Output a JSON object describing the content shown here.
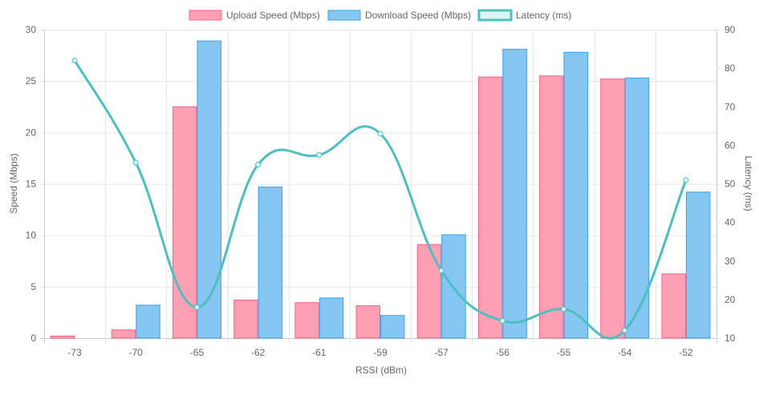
{
  "chart_data": {
    "type": "bar",
    "xlabel": "RSSI (dBm)",
    "ylabel_left": "Speed (Mbps)",
    "ylabel_right": "Latency (ms)",
    "categories": [
      "-73",
      "-70",
      "-65",
      "-62",
      "-61",
      "-59",
      "-57",
      "-56",
      "-55",
      "-54",
      "-52"
    ],
    "ylim_left": [
      0,
      30
    ],
    "ylim_right": [
      10,
      90
    ],
    "left_ticks": [
      "0",
      "5",
      "10",
      "15",
      "20",
      "25",
      "30"
    ],
    "right_ticks": [
      "10",
      "20",
      "30",
      "40",
      "50",
      "60",
      "70",
      "80",
      "90"
    ],
    "grid": true,
    "legend_position": "top",
    "series": [
      {
        "name": "Upload Speed (Mbps)",
        "type": "bar",
        "axis": "left",
        "fill": "#ff9fb4",
        "stroke": "#ff6384",
        "values": [
          0.2,
          0.8,
          22.5,
          3.7,
          3.45,
          3.15,
          9.1,
          25.4,
          25.5,
          25.2,
          6.25
        ]
      },
      {
        "name": "Download Speed (Mbps)",
        "type": "bar",
        "axis": "left",
        "fill": "#86c6f3",
        "stroke": "#36a2eb",
        "values": [
          0,
          3.2,
          28.9,
          14.7,
          3.9,
          2.2,
          10.05,
          28.1,
          27.8,
          25.3,
          14.2
        ]
      },
      {
        "name": "Latency (ms)",
        "type": "line",
        "axis": "right",
        "stroke": "#4bc0c0",
        "fill": "#dcf3f3",
        "values": [
          82,
          55.5,
          18,
          55,
          57.5,
          63,
          27.5,
          14.5,
          17.5,
          12,
          51
        ]
      }
    ]
  }
}
